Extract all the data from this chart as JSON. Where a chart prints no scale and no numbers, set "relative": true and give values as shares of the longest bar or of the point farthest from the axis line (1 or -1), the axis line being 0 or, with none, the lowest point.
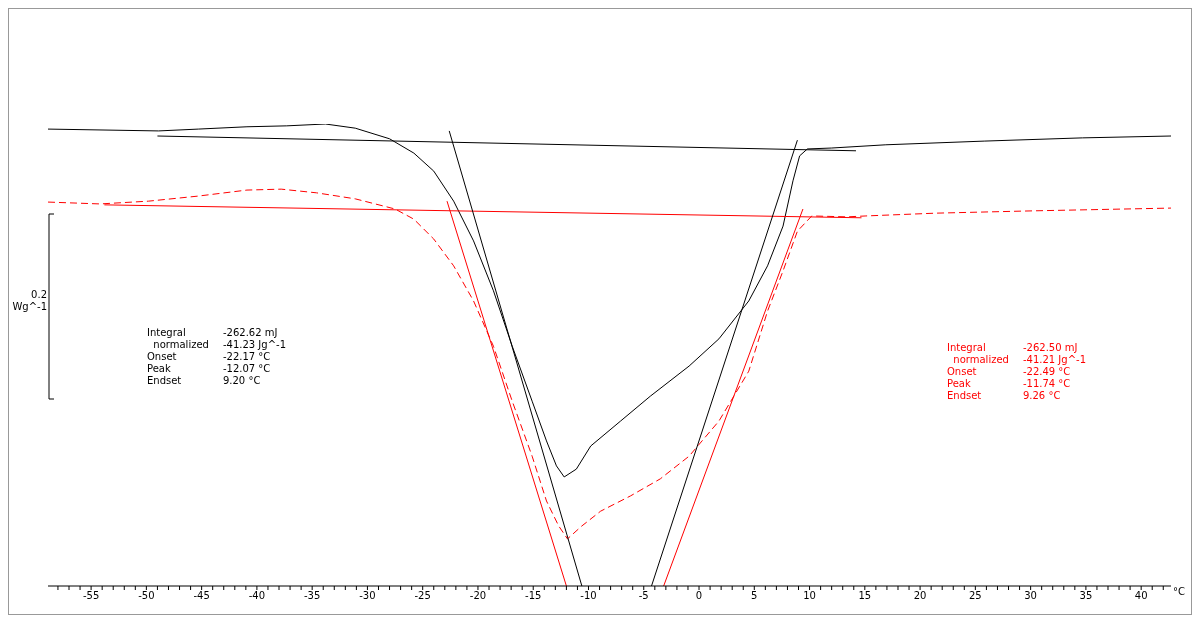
{
  "chart_data": {
    "type": "line",
    "relative": true,
    "xlabel": "°C",
    "ylabel": "0.2 Wg^-1",
    "xlim": [
      -58.9,
      42.7
    ],
    "xticks": [
      -55,
      -50,
      -45,
      -40,
      -35,
      -30,
      -25,
      -20,
      -15,
      -10,
      -5,
      0,
      5,
      10,
      15,
      20,
      25,
      30,
      35,
      40,
      {
        "value": -58,
        "label": null
      },
      {
        "value": -57,
        "label": null
      },
      {
        "value": -56,
        "label": null
      },
      {
        "value": -54,
        "label": null
      },
      {
        "value": -53,
        "label": null
      },
      {
        "value": -52,
        "label": null
      },
      {
        "value": -51,
        "label": null
      },
      {
        "value": -49,
        "label": null
      },
      {
        "value": -48,
        "label": null
      },
      {
        "value": -47,
        "label": null
      },
      {
        "value": -46,
        "label": null
      },
      {
        "value": -44,
        "label": null
      },
      {
        "value": -43,
        "label": null
      },
      {
        "value": -42,
        "label": null
      },
      {
        "value": -41,
        "label": null
      },
      {
        "value": -39,
        "label": null
      },
      {
        "value": -38,
        "label": null
      },
      {
        "value": -37,
        "label": null
      },
      {
        "value": -36,
        "label": null
      },
      {
        "value": -34,
        "label": null
      },
      {
        "value": -33,
        "label": null
      },
      {
        "value": -32,
        "label": null
      },
      {
        "value": -31,
        "label": null
      },
      {
        "value": -29,
        "label": null
      },
      {
        "value": -28,
        "label": null
      },
      {
        "value": -27,
        "label": null
      },
      {
        "value": -26,
        "label": null
      },
      {
        "value": -24,
        "label": null
      },
      {
        "value": -23,
        "label": null
      },
      {
        "value": -22,
        "label": null
      },
      {
        "value": -21,
        "label": null
      },
      {
        "value": -19,
        "label": null
      },
      {
        "value": -18,
        "label": null
      },
      {
        "value": -17,
        "label": null
      },
      {
        "value": -16,
        "label": null
      },
      {
        "value": -14,
        "label": null
      },
      {
        "value": -13,
        "label": null
      },
      {
        "value": -12,
        "label": null
      },
      {
        "value": -11,
        "label": null
      },
      {
        "value": -9,
        "label": null
      },
      {
        "value": -8,
        "label": null
      },
      {
        "value": -7,
        "label": null
      },
      {
        "value": -6,
        "label": null
      },
      {
        "value": -4,
        "label": null
      },
      {
        "value": -3,
        "label": null
      },
      {
        "value": -2,
        "label": null
      },
      {
        "value": -1,
        "label": null
      },
      {
        "value": 1,
        "label": null
      },
      {
        "value": 2,
        "label": null
      },
      {
        "value": 3,
        "label": null
      },
      {
        "value": 4,
        "label": null
      },
      {
        "value": 6,
        "label": null
      },
      {
        "value": 7,
        "label": null
      },
      {
        "value": 8,
        "label": null
      },
      {
        "value": 9,
        "label": null
      },
      {
        "value": 11,
        "label": null
      },
      {
        "value": 12,
        "label": null
      },
      {
        "value": 13,
        "label": null
      },
      {
        "value": 14,
        "label": null
      },
      {
        "value": 16,
        "label": null
      },
      {
        "value": 17,
        "label": null
      },
      {
        "value": 18,
        "label": null
      },
      {
        "value": 19,
        "label": null
      },
      {
        "value": 21,
        "label": null
      },
      {
        "value": 22,
        "label": null
      },
      {
        "value": 23,
        "label": null
      },
      {
        "value": 24,
        "label": null
      },
      {
        "value": 26,
        "label": null
      },
      {
        "value": 27,
        "label": null
      },
      {
        "value": 28,
        "label": null
      },
      {
        "value": 29,
        "label": null
      },
      {
        "value": 31,
        "label": null
      },
      {
        "value": 32,
        "label": null
      },
      {
        "value": 33,
        "label": null
      },
      {
        "value": 34,
        "label": null
      },
      {
        "value": 36,
        "label": null
      },
      {
        "value": 37,
        "label": null
      },
      {
        "value": 38,
        "label": null
      },
      {
        "value": 39,
        "label": null
      },
      {
        "value": 41,
        "label": null
      },
      {
        "value": 42,
        "label": null
      }
    ],
    "grid": false,
    "tick_labels": "x",
    "series": [
      {
        "color": "#000000",
        "line_style": "solid",
        "x": [
          -58.9,
          -48.9,
          -45.3,
          -40.9,
          -37.3,
          -33.8,
          -31.1,
          -28.0,
          -25.8,
          -24.0,
          -22.2,
          -20.4,
          -18.6,
          -16.9,
          -15.1,
          -13.8,
          -12.9,
          -12.2,
          -11.1,
          -9.8,
          -7.1,
          -4.4,
          -0.9,
          1.8,
          4.5,
          6.2,
          7.6,
          8.5,
          9.1,
          9.8,
          12.0,
          16.9,
          25.8,
          34.7,
          42.7
        ],
        "values": [
          0.989,
          0.985,
          0.989,
          0.994,
          0.996,
          1.0,
          0.991,
          0.968,
          0.937,
          0.898,
          0.833,
          0.747,
          0.639,
          0.519,
          0.4,
          0.314,
          0.26,
          0.236,
          0.253,
          0.303,
          0.357,
          0.411,
          0.476,
          0.535,
          0.617,
          0.693,
          0.779,
          0.877,
          0.931,
          0.946,
          0.948,
          0.955,
          0.963,
          0.97,
          0.974
        ]
      },
      {
        "color": "#ff0000",
        "line_style": "dashed",
        "x": [
          -58.9,
          -54.2,
          -49.8,
          -45.3,
          -40.9,
          -37.8,
          -34.6,
          -31.1,
          -27.5,
          -25.8,
          -24.0,
          -22.2,
          -20.4,
          -18.6,
          -16.9,
          -15.1,
          -13.8,
          -12.7,
          -11.9,
          -10.6,
          -8.9,
          -6.2,
          -3.5,
          -0.9,
          1.8,
          4.5,
          6.2,
          7.6,
          8.9,
          10.2,
          13.4,
          15.1,
          21.4,
          30.2,
          42.7
        ],
        "values": [
          0.831,
          0.827,
          0.833,
          0.844,
          0.857,
          0.859,
          0.851,
          0.838,
          0.816,
          0.794,
          0.751,
          0.693,
          0.617,
          0.519,
          0.4,
          0.281,
          0.184,
          0.13,
          0.102,
          0.13,
          0.162,
          0.195,
          0.232,
          0.281,
          0.357,
          0.465,
          0.595,
          0.682,
          0.768,
          0.801,
          0.799,
          0.801,
          0.807,
          0.812,
          0.818
        ]
      },
      {
        "color": "#000000",
        "line_style": "solid",
        "x": [
          -49.0,
          14.2
        ],
        "values": [
          0.974,
          0.942
        ]
      },
      {
        "color": "#ff0000",
        "line_style": "solid",
        "x": [
          -53.8,
          14.7
        ],
        "values": [
          0.825,
          0.797
        ]
      },
      {
        "color": "#000000",
        "line_style": "solid",
        "x": [
          -22.6,
          -10.6
        ],
        "values": [
          0.985,
          0
        ]
      },
      {
        "color": "#000000",
        "line_style": "solid",
        "x": [
          -4.3,
          8.9
        ],
        "values": [
          0,
          0.965
        ]
      },
      {
        "color": "#ff0000",
        "line_style": "solid",
        "x": [
          -22.8,
          -12.0
        ],
        "values": [
          0.833,
          0
        ]
      },
      {
        "color": "#ff0000",
        "line_style": "solid",
        "x": [
          -3.2,
          9.4
        ],
        "values": [
          0,
          0.816
        ]
      }
    ],
    "annotations": [
      "Integral\t-262.62 mJ",
      "  normalized\t-41.23 Jg^-1",
      "Onset\t-22.17 °C",
      "Peak\t-12.07 °C",
      "Endset\t9.20 °C",
      "Integral\t-262.50 mJ",
      "  normalized\t-41.21 Jg^-1",
      "Onset\t-22.49 °C",
      "Peak\t-11.74 °C",
      "Endset\t9.26 °C"
    ]
  }
}
